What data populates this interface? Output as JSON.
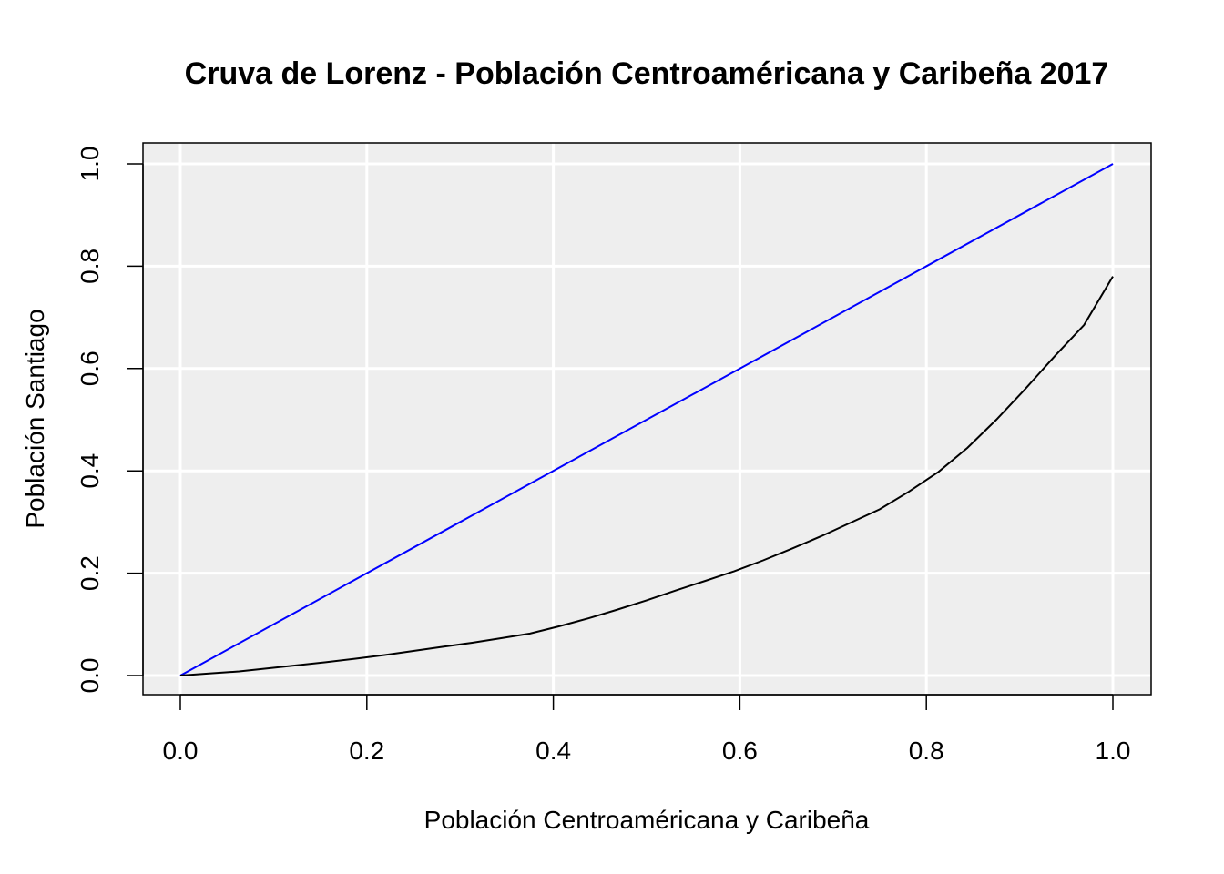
{
  "chart_data": {
    "type": "line",
    "title": "Cruva de Lorenz - Población Centroaméricana y Caribeña 2017",
    "xlabel": "Población Centroaméricana y Caribeña",
    "ylabel": "Población Santiago",
    "xlim": [
      0,
      1
    ],
    "ylim": [
      0,
      1
    ],
    "xticks": [
      "0.0",
      "0.2",
      "0.4",
      "0.6",
      "0.8",
      "1.0"
    ],
    "yticks": [
      "0.0",
      "0.2",
      "0.4",
      "0.6",
      "0.8",
      "1.0"
    ],
    "grid": true,
    "background": "#eeeeee",
    "series": [
      {
        "color": "#0000ff",
        "x": [
          0,
          1
        ],
        "y": [
          0,
          1
        ]
      },
      {
        "color": "#000000",
        "x": [
          0,
          0.031,
          0.063,
          0.094,
          0.125,
          0.156,
          0.188,
          0.219,
          0.25,
          0.281,
          0.313,
          0.344,
          0.375,
          0.406,
          0.438,
          0.469,
          0.5,
          0.531,
          0.563,
          0.594,
          0.625,
          0.656,
          0.688,
          0.719,
          0.75,
          0.781,
          0.813,
          0.844,
          0.875,
          0.906,
          0.938,
          0.969,
          1.0
        ],
        "y": [
          0,
          0.004,
          0.008,
          0.014,
          0.02,
          0.026,
          0.033,
          0.04,
          0.048,
          0.056,
          0.064,
          0.073,
          0.082,
          0.096,
          0.112,
          0.129,
          0.147,
          0.166,
          0.185,
          0.204,
          0.225,
          0.248,
          0.273,
          0.299,
          0.325,
          0.359,
          0.398,
          0.445,
          0.5,
          0.56,
          0.625,
          0.685,
          0.78
        ]
      }
    ]
  }
}
